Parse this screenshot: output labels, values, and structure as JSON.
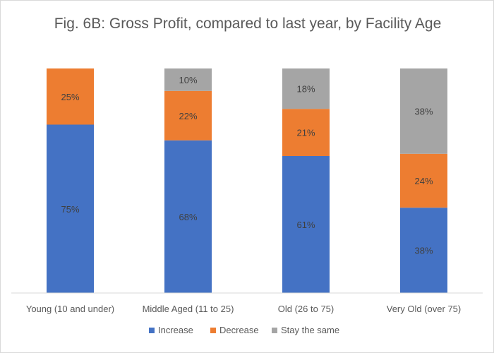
{
  "chart_data": {
    "type": "bar",
    "stacked": true,
    "normalized_percent": true,
    "title": "Fig. 6B: Gross Profit, compared to last year, by Facility Age",
    "xlabel": "",
    "ylabel": "",
    "categories": [
      "Young (10 and under)",
      "Middle Aged (11 to 25)",
      "Old (26 to 75)",
      "Very Old (over 75)"
    ],
    "series": [
      {
        "name": "Increase",
        "color": "#4472c4",
        "values": [
          75,
          68,
          61,
          38
        ],
        "labels": [
          "75%",
          "68%",
          "61%",
          "38%"
        ]
      },
      {
        "name": "Decrease",
        "color": "#ed7d31",
        "values": [
          25,
          22,
          21,
          24
        ],
        "labels": [
          "25%",
          "22%",
          "21%",
          "24%"
        ]
      },
      {
        "name": "Stay the same",
        "color": "#a5a5a5",
        "values": [
          0,
          10,
          18,
          38
        ],
        "labels": [
          "",
          "10%",
          "18%",
          "38%"
        ]
      }
    ],
    "ylim": [
      0,
      100
    ],
    "grid": false,
    "legend_position": "bottom"
  }
}
